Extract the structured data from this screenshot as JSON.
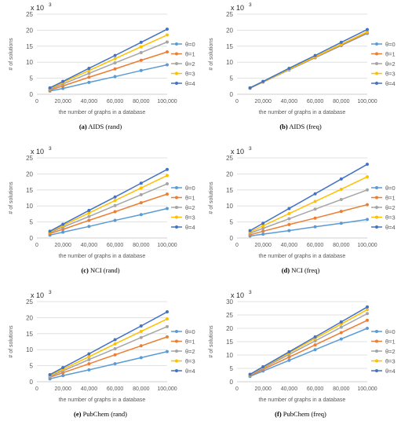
{
  "colors": {
    "theta0": "#5B9BD5",
    "theta1": "#ED7D31",
    "theta2": "#A5A5A5",
    "theta3": "#FFC000",
    "theta4": "#4472C4",
    "grid": "#D9D9D9",
    "text": "#595959"
  },
  "chart_data": [
    {
      "type": "line",
      "caption_label": "(a)",
      "caption_text": "AIDS (rand)",
      "y_multiplier": "x 10",
      "y_multiplier_exp": "3",
      "ylabel": "# of solutions",
      "xlabel": "the number of graphs in a database",
      "x": [
        10000,
        20000,
        40000,
        60000,
        80000,
        100000
      ],
      "x_ticks": [
        0,
        20000,
        40000,
        60000,
        80000,
        100000
      ],
      "x_tick_labels": [
        "0",
        "20,000",
        "40,000",
        "60,000",
        "80,000",
        "100,000"
      ],
      "xlim": [
        0,
        100000
      ],
      "ylim": [
        0,
        25
      ],
      "y_ticks": [
        0,
        5,
        10,
        15,
        20,
        25
      ],
      "y_tick_labels": [
        "0",
        "5",
        "10",
        "15",
        "20",
        "25"
      ],
      "grid": true,
      "legend_position": "right",
      "series": [
        {
          "name": "θ=0",
          "values": [
            1.0,
            1.8,
            3.7,
            5.5,
            7.4,
            9.2
          ]
        },
        {
          "name": "θ=1",
          "values": [
            1.3,
            2.6,
            5.3,
            7.9,
            10.6,
            13.2
          ]
        },
        {
          "name": "θ=2",
          "values": [
            1.6,
            3.2,
            6.5,
            9.8,
            13.0,
            16.3
          ]
        },
        {
          "name": "θ=3",
          "values": [
            1.8,
            3.7,
            7.4,
            11.1,
            14.8,
            18.5
          ]
        },
        {
          "name": "θ=4",
          "values": [
            2.0,
            4.0,
            8.1,
            12.1,
            16.2,
            20.3
          ]
        }
      ]
    },
    {
      "type": "line",
      "caption_label": "(b)",
      "caption_text": "AIDS (freq)",
      "y_multiplier": "x 10",
      "y_multiplier_exp": "3",
      "ylabel": "# of solutions",
      "xlabel": "the number of graphs in a database",
      "x": [
        10000,
        20000,
        40000,
        60000,
        80000,
        100000
      ],
      "x_ticks": [
        0,
        20000,
        40000,
        60000,
        80000,
        100000
      ],
      "x_tick_labels": [
        "0",
        "20,000",
        "40,000",
        "60,000",
        "80,000",
        "100,000"
      ],
      "xlim": [
        0,
        100000
      ],
      "ylim": [
        0,
        25
      ],
      "y_ticks": [
        0,
        5,
        10,
        15,
        20,
        25
      ],
      "y_tick_labels": [
        "0",
        "5",
        "10",
        "15",
        "20",
        "25"
      ],
      "grid": true,
      "legend_position": "right",
      "series": [
        {
          "name": "θ=0",
          "values": [
            1.9,
            3.8,
            7.6,
            11.4,
            15.2,
            19.0
          ]
        },
        {
          "name": "θ=1",
          "values": [
            1.9,
            3.8,
            7.7,
            11.5,
            15.4,
            19.2
          ]
        },
        {
          "name": "θ=2",
          "values": [
            1.9,
            3.9,
            7.7,
            11.6,
            15.5,
            19.4
          ]
        },
        {
          "name": "θ=3",
          "values": [
            2.0,
            3.9,
            7.8,
            11.7,
            15.6,
            19.5
          ]
        },
        {
          "name": "θ=4",
          "values": [
            2.0,
            4.0,
            8.1,
            12.1,
            16.2,
            20.2
          ]
        }
      ]
    },
    {
      "type": "line",
      "caption_label": "(c)",
      "caption_text": "NCI (rand)",
      "y_multiplier": "x 10",
      "y_multiplier_exp": "3",
      "ylabel": "# of solutions",
      "xlabel": "the number of graphs in a database",
      "x": [
        10000,
        20000,
        40000,
        60000,
        80000,
        100000
      ],
      "x_ticks": [
        0,
        20000,
        40000,
        60000,
        80000,
        100000
      ],
      "x_tick_labels": [
        "0",
        "20,000",
        "40,000",
        "60,000",
        "80,000",
        "100,000"
      ],
      "xlim": [
        0,
        100000
      ],
      "ylim": [
        0,
        25
      ],
      "y_ticks": [
        0,
        5,
        10,
        15,
        20,
        25
      ],
      "y_tick_labels": [
        "0",
        "5",
        "10",
        "15",
        "20",
        "25"
      ],
      "grid": true,
      "legend_position": "right",
      "series": [
        {
          "name": "θ=0",
          "values": [
            0.9,
            1.8,
            3.6,
            5.5,
            7.3,
            9.2
          ]
        },
        {
          "name": "θ=1",
          "values": [
            1.4,
            2.7,
            5.5,
            8.2,
            11.0,
            13.7
          ]
        },
        {
          "name": "θ=2",
          "values": [
            1.7,
            3.4,
            6.7,
            10.1,
            13.5,
            16.9
          ]
        },
        {
          "name": "θ=3",
          "values": [
            1.9,
            3.9,
            7.8,
            11.7,
            15.6,
            19.5
          ]
        },
        {
          "name": "θ=4",
          "values": [
            2.1,
            4.3,
            8.6,
            12.8,
            17.1,
            21.4
          ]
        }
      ]
    },
    {
      "type": "line",
      "caption_label": "(d)",
      "caption_text": "NCI (freq)",
      "y_multiplier": "x 10",
      "y_multiplier_exp": "3",
      "ylabel": "# of solutions",
      "xlabel": "the number of graphs in a database",
      "x": [
        10000,
        20000,
        40000,
        60000,
        80000,
        100000
      ],
      "x_ticks": [
        0,
        20000,
        40000,
        60000,
        80000,
        100000
      ],
      "x_tick_labels": [
        "0",
        "20,000",
        "40,000",
        "60,000",
        "80,000",
        "100,000"
      ],
      "xlim": [
        0,
        100000
      ],
      "ylim": [
        0,
        25
      ],
      "y_ticks": [
        0,
        5,
        10,
        15,
        20,
        25
      ],
      "y_tick_labels": [
        "0",
        "5",
        "10",
        "15",
        "20",
        "25"
      ],
      "grid": true,
      "legend_position": "right",
      "series": [
        {
          "name": "θ=0",
          "values": [
            0.6,
            1.2,
            2.3,
            3.5,
            4.6,
            5.8
          ]
        },
        {
          "name": "θ=1",
          "values": [
            1.0,
            2.1,
            4.2,
            6.2,
            8.3,
            10.4
          ]
        },
        {
          "name": "θ=2",
          "values": [
            1.5,
            3.0,
            6.0,
            9.0,
            12.0,
            15.0
          ]
        },
        {
          "name": "θ=3",
          "values": [
            1.9,
            3.8,
            7.6,
            11.4,
            15.2,
            19.1
          ]
        },
        {
          "name": "θ=4",
          "values": [
            2.3,
            4.6,
            9.2,
            13.8,
            18.4,
            23.0
          ]
        }
      ]
    },
    {
      "type": "line",
      "caption_label": "(e)",
      "caption_text": "PubChem (rand)",
      "y_multiplier": "x 10",
      "y_multiplier_exp": "3",
      "ylabel": "# of solutions",
      "xlabel": "the number of graphs in a database",
      "x": [
        10000,
        20000,
        40000,
        60000,
        80000,
        100000
      ],
      "x_ticks": [
        0,
        20000,
        40000,
        60000,
        80000,
        100000
      ],
      "x_tick_labels": [
        "0",
        "20,000",
        "40,000",
        "60,000",
        "80,000",
        "100,000"
      ],
      "xlim": [
        0,
        100000
      ],
      "ylim": [
        0,
        25
      ],
      "y_ticks": [
        0,
        5,
        10,
        15,
        20,
        25
      ],
      "y_tick_labels": [
        "0",
        "5",
        "10",
        "15",
        "20",
        "25"
      ],
      "grid": true,
      "legend_position": "right",
      "series": [
        {
          "name": "θ=0",
          "values": [
            0.9,
            1.9,
            3.7,
            5.6,
            7.5,
            9.4
          ]
        },
        {
          "name": "θ=1",
          "values": [
            1.4,
            2.8,
            5.6,
            8.4,
            11.2,
            14.0
          ]
        },
        {
          "name": "θ=2",
          "values": [
            1.7,
            3.4,
            6.9,
            10.3,
            13.8,
            17.2
          ]
        },
        {
          "name": "θ=3",
          "values": [
            2.0,
            3.9,
            7.8,
            11.8,
            15.7,
            19.6
          ]
        },
        {
          "name": "θ=4",
          "values": [
            2.2,
            4.4,
            8.7,
            13.1,
            17.4,
            21.8
          ]
        }
      ]
    },
    {
      "type": "line",
      "caption_label": "(f)",
      "caption_text": "PubChem (freq)",
      "y_multiplier": "x 10",
      "y_multiplier_exp": "3",
      "ylabel": "# of solutions",
      "xlabel": "the number of graphs in a database",
      "x": [
        10000,
        20000,
        40000,
        60000,
        80000,
        100000
      ],
      "x_ticks": [
        0,
        20000,
        40000,
        60000,
        80000,
        100000
      ],
      "x_tick_labels": [
        "0",
        "20,000",
        "40,000",
        "60,000",
        "80,000",
        "100,000"
      ],
      "xlim": [
        0,
        100000
      ],
      "ylim": [
        0,
        30
      ],
      "y_ticks": [
        0,
        5,
        10,
        15,
        20,
        25,
        30
      ],
      "y_tick_labels": [
        "0",
        "5",
        "10",
        "15",
        "20",
        "25",
        "30"
      ],
      "grid": true,
      "legend_position": "right",
      "series": [
        {
          "name": "θ=0",
          "values": [
            2.0,
            4.0,
            8.0,
            12.0,
            16.0,
            20.0
          ]
        },
        {
          "name": "θ=1",
          "values": [
            2.3,
            4.6,
            9.2,
            13.8,
            18.4,
            23.0
          ]
        },
        {
          "name": "θ=2",
          "values": [
            2.5,
            5.1,
            10.2,
            15.3,
            20.4,
            25.5
          ]
        },
        {
          "name": "θ=3",
          "values": [
            2.7,
            5.4,
            10.8,
            16.2,
            21.6,
            27.0
          ]
        },
        {
          "name": "θ=4",
          "values": [
            2.8,
            5.6,
            11.2,
            16.8,
            22.4,
            28.0
          ]
        }
      ]
    }
  ]
}
